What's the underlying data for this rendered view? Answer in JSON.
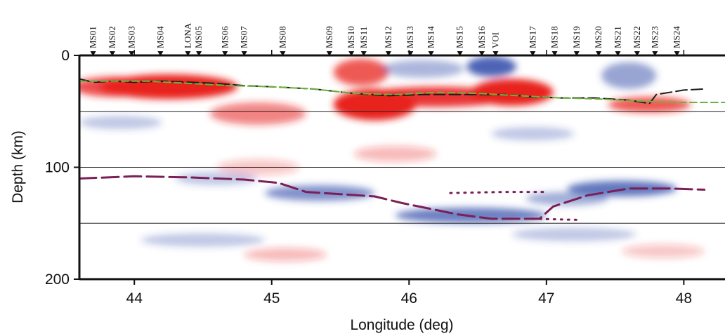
{
  "chart_data": {
    "type": "heatmap",
    "title": "",
    "xlabel": "Longitude (deg)",
    "ylabel": "Depth (km)",
    "xlim": [
      43.6,
      48.3
    ],
    "ylim": [
      0,
      200
    ],
    "y_inverted": true,
    "x_ticks": [
      "44",
      "45",
      "46",
      "47",
      "48"
    ],
    "x_tick_values": [
      44,
      45,
      46,
      47,
      48
    ],
    "y_ticks": [
      "0",
      "100",
      "200"
    ],
    "y_tick_values": [
      0,
      100,
      200
    ],
    "gridlines_y": [
      50,
      100,
      150
    ],
    "colors": {
      "positive": "#e8201e",
      "negative": "#2f49a8",
      "moho_black": "#1a1a1a",
      "moho_green": "#6bb33a",
      "lab": "#7a1f57"
    },
    "stations": [
      {
        "name": "MS01",
        "lon": 43.7
      },
      {
        "name": "MS02",
        "lon": 43.84
      },
      {
        "name": "MS03",
        "lon": 43.98
      },
      {
        "name": "MS04",
        "lon": 44.19
      },
      {
        "name": "LONA",
        "lon": 44.39
      },
      {
        "name": "MS05",
        "lon": 44.47
      },
      {
        "name": "MS06",
        "lon": 44.66
      },
      {
        "name": "MS07",
        "lon": 44.8
      },
      {
        "name": "MS08",
        "lon": 45.08
      },
      {
        "name": "MS09",
        "lon": 45.42
      },
      {
        "name": "MS10",
        "lon": 45.58
      },
      {
        "name": "MS11",
        "lon": 45.67
      },
      {
        "name": "MS12",
        "lon": 45.85
      },
      {
        "name": "MS13",
        "lon": 46.01
      },
      {
        "name": "MS14",
        "lon": 46.16
      },
      {
        "name": "MS15",
        "lon": 46.37
      },
      {
        "name": "MS16",
        "lon": 46.53
      },
      {
        "name": "VOI",
        "lon": 46.63
      },
      {
        "name": "MS17",
        "lon": 46.9
      },
      {
        "name": "MS18",
        "lon": 47.06
      },
      {
        "name": "MS19",
        "lon": 47.22
      },
      {
        "name": "MS20",
        "lon": 47.38
      },
      {
        "name": "MS21",
        "lon": 47.52
      },
      {
        "name": "MS22",
        "lon": 47.66
      },
      {
        "name": "MS23",
        "lon": 47.79
      },
      {
        "name": "MS24",
        "lon": 47.95
      }
    ],
    "anomalies": [
      {
        "lon": 44.25,
        "depth": 28,
        "rx": 0.5,
        "ry": 11,
        "amp": 1.0
      },
      {
        "lon": 43.85,
        "depth": 28,
        "rx": 0.3,
        "ry": 9,
        "amp": 0.8
      },
      {
        "lon": 44.9,
        "depth": 52,
        "rx": 0.35,
        "ry": 10,
        "amp": 0.55
      },
      {
        "lon": 45.75,
        "depth": 44,
        "rx": 0.3,
        "ry": 14,
        "amp": 1.0
      },
      {
        "lon": 46.2,
        "depth": 37,
        "rx": 0.55,
        "ry": 9,
        "amp": 0.9
      },
      {
        "lon": 46.75,
        "depth": 33,
        "rx": 0.3,
        "ry": 12,
        "amp": 1.0
      },
      {
        "lon": 45.65,
        "depth": 15,
        "rx": 0.2,
        "ry": 12,
        "amp": 0.75
      },
      {
        "lon": 47.75,
        "depth": 44,
        "rx": 0.3,
        "ry": 7,
        "amp": 0.75
      },
      {
        "lon": 45.9,
        "depth": 88,
        "rx": 0.3,
        "ry": 7,
        "amp": 0.3
      },
      {
        "lon": 44.9,
        "depth": 100,
        "rx": 0.3,
        "ry": 7,
        "amp": 0.25
      },
      {
        "lon": 45.1,
        "depth": 178,
        "rx": 0.3,
        "ry": 6,
        "amp": 0.3
      },
      {
        "lon": 47.85,
        "depth": 175,
        "rx": 0.3,
        "ry": 6,
        "amp": 0.25
      },
      {
        "lon": 46.6,
        "depth": 10,
        "rx": 0.18,
        "ry": 9,
        "amp": -0.85
      },
      {
        "lon": 46.1,
        "depth": 12,
        "rx": 0.3,
        "ry": 8,
        "amp": -0.4
      },
      {
        "lon": 47.6,
        "depth": 18,
        "rx": 0.2,
        "ry": 12,
        "amp": -0.5
      },
      {
        "lon": 45.35,
        "depth": 123,
        "rx": 0.4,
        "ry": 7,
        "amp": -0.6
      },
      {
        "lon": 46.45,
        "depth": 143,
        "rx": 0.55,
        "ry": 7,
        "amp": -0.7
      },
      {
        "lon": 47.55,
        "depth": 119,
        "rx": 0.4,
        "ry": 7,
        "amp": -0.75
      },
      {
        "lon": 47.15,
        "depth": 128,
        "rx": 0.3,
        "ry": 6,
        "amp": -0.45
      },
      {
        "lon": 44.6,
        "depth": 110,
        "rx": 0.3,
        "ry": 6,
        "amp": -0.3
      },
      {
        "lon": 43.9,
        "depth": 60,
        "rx": 0.3,
        "ry": 6,
        "amp": -0.3
      },
      {
        "lon": 46.9,
        "depth": 70,
        "rx": 0.3,
        "ry": 6,
        "amp": -0.3
      },
      {
        "lon": 44.5,
        "depth": 165,
        "rx": 0.45,
        "ry": 6,
        "amp": -0.3
      },
      {
        "lon": 47.2,
        "depth": 160,
        "rx": 0.45,
        "ry": 6,
        "amp": -0.3
      }
    ],
    "series": [
      {
        "style": "dashed-black",
        "points": [
          [
            43.6,
            21
          ],
          [
            43.7,
            24
          ],
          [
            43.85,
            23
          ],
          [
            44.0,
            24
          ],
          [
            44.2,
            23
          ],
          [
            44.4,
            24
          ],
          [
            44.6,
            25
          ],
          [
            44.8,
            27
          ],
          [
            45.0,
            28
          ],
          [
            45.3,
            30
          ],
          [
            45.6,
            34
          ],
          [
            45.85,
            36
          ],
          [
            46.1,
            35
          ],
          [
            46.4,
            35
          ],
          [
            46.7,
            35
          ],
          [
            46.9,
            37
          ],
          [
            47.1,
            38
          ],
          [
            47.35,
            38
          ],
          [
            47.6,
            40
          ],
          [
            47.75,
            43
          ],
          [
            47.8,
            35
          ],
          [
            48.0,
            31
          ],
          [
            48.15,
            30
          ]
        ]
      },
      {
        "style": "dashed-green",
        "points": [
          [
            43.6,
            23
          ],
          [
            43.85,
            23
          ],
          [
            44.1,
            23
          ],
          [
            44.4,
            25
          ],
          [
            44.7,
            27
          ],
          [
            45.0,
            28
          ],
          [
            45.3,
            30
          ],
          [
            45.6,
            34
          ],
          [
            45.9,
            35
          ],
          [
            46.2,
            33
          ],
          [
            46.5,
            34
          ],
          [
            46.8,
            36
          ],
          [
            47.1,
            38
          ],
          [
            47.4,
            39
          ],
          [
            47.7,
            41
          ],
          [
            48.0,
            42
          ],
          [
            48.3,
            42
          ]
        ]
      },
      {
        "style": "dashed-purple",
        "points": [
          [
            43.6,
            110
          ],
          [
            44.0,
            108
          ],
          [
            44.4,
            109
          ],
          [
            44.8,
            111
          ],
          [
            45.05,
            114
          ],
          [
            45.25,
            122
          ],
          [
            45.5,
            124
          ],
          [
            45.75,
            126
          ],
          [
            45.95,
            132
          ],
          [
            46.15,
            137
          ],
          [
            46.35,
            142
          ],
          [
            46.6,
            146
          ],
          [
            46.95,
            146
          ],
          [
            47.05,
            135
          ],
          [
            47.3,
            125
          ],
          [
            47.6,
            119
          ],
          [
            47.9,
            119
          ],
          [
            48.15,
            120
          ]
        ]
      },
      {
        "style": "dotted-purple",
        "points": [
          [
            46.3,
            123
          ],
          [
            46.7,
            122
          ],
          [
            47.0,
            122
          ]
        ]
      },
      {
        "style": "dotted-purple",
        "points": [
          [
            46.9,
            146
          ],
          [
            47.25,
            147
          ]
        ]
      }
    ]
  }
}
